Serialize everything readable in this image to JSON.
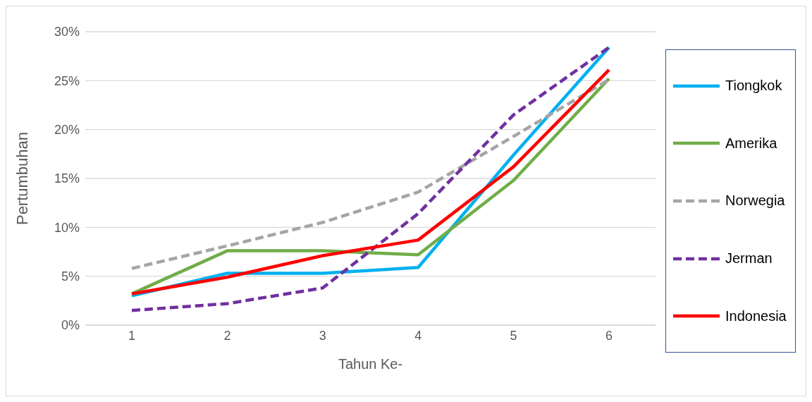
{
  "chart_data": {
    "type": "line",
    "xlabel": "Tahun Ke-",
    "ylabel": "Pertumbuhan",
    "categories": [
      "1",
      "2",
      "3",
      "4",
      "5",
      "6"
    ],
    "series": [
      {
        "name": "Tiongkok",
        "color": "#00b0f0",
        "line_style": "solid",
        "values": [
          3.0,
          5.3,
          5.3,
          5.9,
          17.4,
          28.4
        ]
      },
      {
        "name": "Amerika",
        "color": "#70ad47",
        "line_style": "solid",
        "values": [
          3.2,
          7.6,
          7.6,
          7.2,
          14.8,
          25.2
        ]
      },
      {
        "name": "Norwegia",
        "color": "#a5a5a5",
        "line_style": "dashed",
        "values": [
          5.8,
          8.1,
          10.5,
          13.6,
          19.3,
          25.1
        ]
      },
      {
        "name": "Jerman",
        "color": "#7030a0",
        "line_style": "dashed",
        "values": [
          1.5,
          2.2,
          3.8,
          11.4,
          21.5,
          28.4
        ]
      },
      {
        "name": "Indonesia",
        "color": "#ff0000",
        "line_style": "solid",
        "values": [
          3.2,
          4.9,
          7.1,
          8.7,
          16.2,
          26.1
        ]
      }
    ],
    "ylim": [
      0,
      30
    ],
    "yticks": [
      {
        "value": 0,
        "label": "0%"
      },
      {
        "value": 5,
        "label": "5%"
      },
      {
        "value": 10,
        "label": "10%"
      },
      {
        "value": 15,
        "label": "15%"
      },
      {
        "value": 20,
        "label": "20%"
      },
      {
        "value": 25,
        "label": "25%"
      },
      {
        "value": 30,
        "label": "30%"
      }
    ],
    "grid": "y",
    "legend": "right",
    "marker": "none"
  }
}
